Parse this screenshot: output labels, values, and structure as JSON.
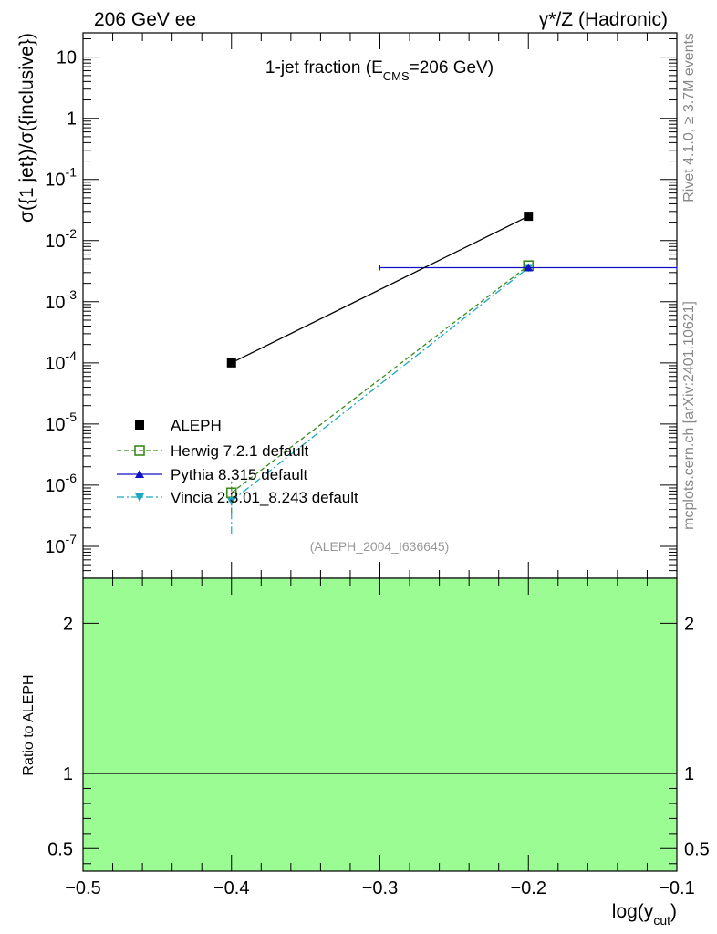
{
  "header": {
    "left": "206 GeV ee",
    "right": "γ*/Z (Hadronic)"
  },
  "side": {
    "top": "Rivet 4.1.0, ≥ 3.7M events",
    "bottom": "mcplots.cern.ch [arXiv:2401.10621]"
  },
  "chart_data": [
    {
      "type": "scatter",
      "title": "1-jet fraction (E_CMS=206 GeV)",
      "title_main": "1-jet fraction (E",
      "title_sub": "CMS",
      "title_end": "=206 GeV)",
      "watermark": "(ALEPH_2004_I636645)",
      "ylabel": "σ({1 jet})/σ({inclusive})",
      "yscale": "log",
      "ylim": [
        3e-08,
        25
      ],
      "xlim": [
        -0.5,
        -0.1
      ],
      "y_ticks": [
        {
          "mant": "10",
          "exp": "-7",
          "v": 1e-07
        },
        {
          "mant": "10",
          "exp": "-6",
          "v": 1e-06
        },
        {
          "mant": "10",
          "exp": "-5",
          "v": 1e-05
        },
        {
          "mant": "10",
          "exp": "-4",
          "v": 0.0001
        },
        {
          "mant": "10",
          "exp": "-3",
          "v": 0.001
        },
        {
          "mant": "10",
          "exp": "-2",
          "v": 0.01
        },
        {
          "mant": "10",
          "exp": "-1",
          "v": 0.1
        },
        {
          "mant": "1",
          "exp": "",
          "v": 1
        },
        {
          "mant": "10",
          "exp": "",
          "v": 10
        }
      ],
      "series": [
        {
          "name": "ALEPH",
          "color": "#000000",
          "marker": "square-filled",
          "x": [
            -0.4,
            -0.2
          ],
          "y": [
            0.0001,
            0.025
          ]
        },
        {
          "name": "Herwig 7.2.1 default",
          "color": "#3a8a1a",
          "marker": "square-open",
          "linestyle": "dashed",
          "x": [
            -0.4,
            -0.2
          ],
          "y": [
            7.5e-07,
            0.0039
          ],
          "yerr": [
            [
              4e-07,
              0.0002
            ],
            [
              4e-07,
              0.0002
            ]
          ]
        },
        {
          "name": "Pythia 8.315 default",
          "color": "#1010c8",
          "marker": "triangle-up",
          "x": [
            -0.2
          ],
          "y": [
            0.0036
          ],
          "xerr": [
            [
              0.1
            ],
            [
              0.1
            ]
          ]
        },
        {
          "name": "Vincia 2.3.01_8.243 default",
          "color": "#1aa8c0",
          "marker": "triangle-down",
          "linestyle": "dashdot",
          "x": [
            -0.4,
            -0.2
          ],
          "y": [
            5.5e-07,
            0.0036
          ],
          "yerr": [
            [
              3.9e-07,
              0.0002
            ],
            [
              3e-07,
              0.0002
            ]
          ]
        }
      ]
    },
    {
      "type": "area",
      "ylabel": "Ratio to ALEPH",
      "xlabel": "log(y_cut)",
      "xlabel_main": "log(y",
      "xlabel_sub": "cut",
      "xlabel_end": ")",
      "ylim": [
        0.35,
        2.3
      ],
      "xlim": [
        -0.5,
        -0.1
      ],
      "band": {
        "name": "ALEPH uncertainty",
        "color": "#9cfc94",
        "x": [
          -0.5,
          -0.1
        ]
      },
      "reference": 1,
      "y_ticks": [
        {
          "label": "0.5",
          "v": 0.5
        },
        {
          "label": "1",
          "v": 1
        },
        {
          "label": "2",
          "v": 2
        }
      ],
      "x_ticks": [
        {
          "label": "−0.5",
          "v": -0.5
        },
        {
          "label": "−0.4",
          "v": -0.4
        },
        {
          "label": "−0.3",
          "v": -0.3
        },
        {
          "label": "−0.2",
          "v": -0.2
        },
        {
          "label": "−0.1",
          "v": -0.1
        }
      ]
    }
  ]
}
